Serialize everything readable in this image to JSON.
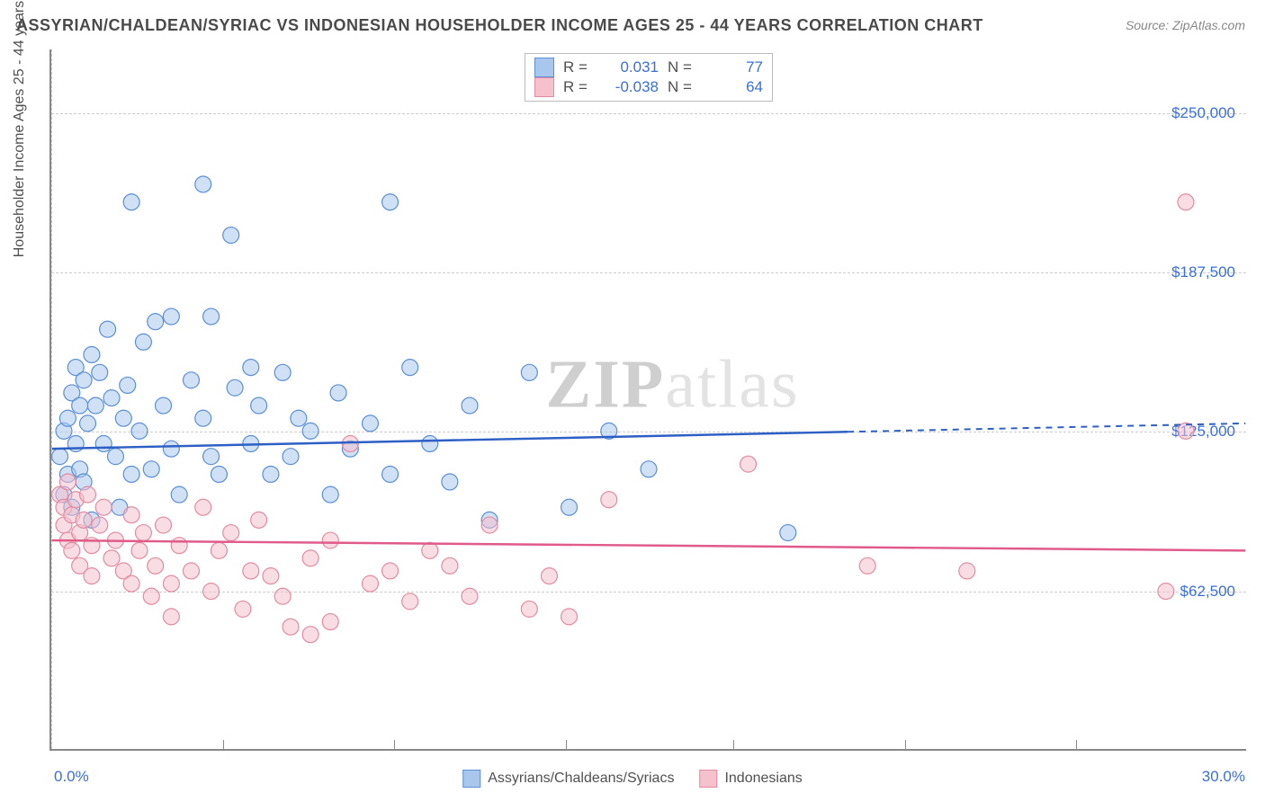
{
  "title": "ASSYRIAN/CHALDEAN/SYRIAC VS INDONESIAN HOUSEHOLDER INCOME AGES 25 - 44 YEARS CORRELATION CHART",
  "source": "Source: ZipAtlas.com",
  "watermark_bold": "ZIP",
  "watermark_light": "atlas",
  "y_axis_title": "Householder Income Ages 25 - 44 years",
  "x_min_label": "0.0%",
  "x_max_label": "30.0%",
  "chart": {
    "type": "scatter",
    "xlim": [
      0,
      30
    ],
    "ylim": [
      0,
      275000
    ],
    "y_ticks": [
      62500,
      125000,
      187500,
      250000
    ],
    "y_tick_labels": [
      "$62,500",
      "$125,000",
      "$187,500",
      "$250,000"
    ],
    "x_tick_positions": [
      0,
      4.3,
      8.6,
      12.9,
      17.1,
      21.4,
      25.7
    ],
    "background_color": "#ffffff",
    "grid_color": "#cccccc",
    "marker_radius": 9,
    "marker_opacity": 0.55,
    "series": [
      {
        "name": "Assyrians/Chaldeans/Syriacs",
        "fill": "#a9c7ec",
        "stroke": "#5b8fd6",
        "line_color": "#2d5fc4",
        "R": "0.031",
        "N": "77",
        "regression": {
          "x1": 0,
          "y1": 118000,
          "x2": 30,
          "y2": 128000,
          "solid_until_x": 20
        },
        "points": [
          [
            0.2,
            115000
          ],
          [
            0.3,
            100000
          ],
          [
            0.3,
            125000
          ],
          [
            0.4,
            108000
          ],
          [
            0.4,
            130000
          ],
          [
            0.5,
            140000
          ],
          [
            0.5,
            95000
          ],
          [
            0.6,
            150000
          ],
          [
            0.6,
            120000
          ],
          [
            0.7,
            110000
          ],
          [
            0.7,
            135000
          ],
          [
            0.8,
            145000
          ],
          [
            0.8,
            105000
          ],
          [
            0.9,
            128000
          ],
          [
            1.0,
            155000
          ],
          [
            1.0,
            90000
          ],
          [
            1.1,
            135000
          ],
          [
            1.2,
            148000
          ],
          [
            1.3,
            120000
          ],
          [
            1.4,
            165000
          ],
          [
            1.5,
            138000
          ],
          [
            1.6,
            115000
          ],
          [
            1.7,
            95000
          ],
          [
            1.8,
            130000
          ],
          [
            1.9,
            143000
          ],
          [
            2.0,
            108000
          ],
          [
            2.0,
            215000
          ],
          [
            2.2,
            125000
          ],
          [
            2.3,
            160000
          ],
          [
            2.5,
            110000
          ],
          [
            2.6,
            168000
          ],
          [
            2.8,
            135000
          ],
          [
            3.0,
            118000
          ],
          [
            3.0,
            170000
          ],
          [
            3.2,
            100000
          ],
          [
            3.5,
            145000
          ],
          [
            3.8,
            130000
          ],
          [
            3.8,
            222000
          ],
          [
            4.0,
            115000
          ],
          [
            4.0,
            170000
          ],
          [
            4.2,
            108000
          ],
          [
            4.5,
            202000
          ],
          [
            4.6,
            142000
          ],
          [
            5.0,
            120000
          ],
          [
            5.0,
            150000
          ],
          [
            5.2,
            135000
          ],
          [
            5.5,
            108000
          ],
          [
            5.8,
            148000
          ],
          [
            6.0,
            115000
          ],
          [
            6.2,
            130000
          ],
          [
            6.5,
            125000
          ],
          [
            7.0,
            100000
          ],
          [
            7.2,
            140000
          ],
          [
            7.5,
            118000
          ],
          [
            8.0,
            128000
          ],
          [
            8.5,
            215000
          ],
          [
            8.5,
            108000
          ],
          [
            9.0,
            150000
          ],
          [
            9.5,
            120000
          ],
          [
            10.0,
            105000
          ],
          [
            10.5,
            135000
          ],
          [
            11.0,
            90000
          ],
          [
            12.0,
            148000
          ],
          [
            13.0,
            95000
          ],
          [
            14.0,
            125000
          ],
          [
            15.0,
            110000
          ],
          [
            18.5,
            85000
          ]
        ]
      },
      {
        "name": "Indonesians",
        "fill": "#f4c1cd",
        "stroke": "#e38ba1",
        "line_color": "#e05a8a",
        "R": "-0.038",
        "N": "64",
        "regression": {
          "x1": 0,
          "y1": 82000,
          "x2": 30,
          "y2": 78000,
          "solid_until_x": 30
        },
        "points": [
          [
            0.2,
            100000
          ],
          [
            0.3,
            95000
          ],
          [
            0.3,
            88000
          ],
          [
            0.4,
            105000
          ],
          [
            0.4,
            82000
          ],
          [
            0.5,
            92000
          ],
          [
            0.5,
            78000
          ],
          [
            0.6,
            98000
          ],
          [
            0.7,
            85000
          ],
          [
            0.7,
            72000
          ],
          [
            0.8,
            90000
          ],
          [
            0.9,
            100000
          ],
          [
            1.0,
            80000
          ],
          [
            1.0,
            68000
          ],
          [
            1.2,
            88000
          ],
          [
            1.3,
            95000
          ],
          [
            1.5,
            75000
          ],
          [
            1.6,
            82000
          ],
          [
            1.8,
            70000
          ],
          [
            2.0,
            92000
          ],
          [
            2.0,
            65000
          ],
          [
            2.2,
            78000
          ],
          [
            2.3,
            85000
          ],
          [
            2.5,
            60000
          ],
          [
            2.6,
            72000
          ],
          [
            2.8,
            88000
          ],
          [
            3.0,
            65000
          ],
          [
            3.0,
            52000
          ],
          [
            3.2,
            80000
          ],
          [
            3.5,
            70000
          ],
          [
            3.8,
            95000
          ],
          [
            4.0,
            62000
          ],
          [
            4.2,
            78000
          ],
          [
            4.5,
            85000
          ],
          [
            4.8,
            55000
          ],
          [
            5.0,
            70000
          ],
          [
            5.2,
            90000
          ],
          [
            5.5,
            68000
          ],
          [
            5.8,
            60000
          ],
          [
            6.0,
            48000
          ],
          [
            6.5,
            75000
          ],
          [
            6.5,
            45000
          ],
          [
            7.0,
            82000
          ],
          [
            7.0,
            50000
          ],
          [
            7.5,
            120000
          ],
          [
            8.0,
            65000
          ],
          [
            8.5,
            70000
          ],
          [
            9.0,
            58000
          ],
          [
            9.5,
            78000
          ],
          [
            10.0,
            72000
          ],
          [
            10.5,
            60000
          ],
          [
            11.0,
            88000
          ],
          [
            12.0,
            55000
          ],
          [
            12.5,
            68000
          ],
          [
            13.0,
            52000
          ],
          [
            14.0,
            98000
          ],
          [
            17.5,
            112000
          ],
          [
            20.5,
            72000
          ],
          [
            23.0,
            70000
          ],
          [
            28.0,
            62000
          ],
          [
            28.5,
            125000
          ],
          [
            28.5,
            215000
          ]
        ]
      }
    ]
  },
  "bottom_legend": [
    {
      "label": "Assyrians/Chaldeans/Syriacs",
      "fill": "#a9c7ec",
      "stroke": "#5b8fd6"
    },
    {
      "label": "Indonesians",
      "fill": "#f4c1cd",
      "stroke": "#e38ba1"
    }
  ]
}
